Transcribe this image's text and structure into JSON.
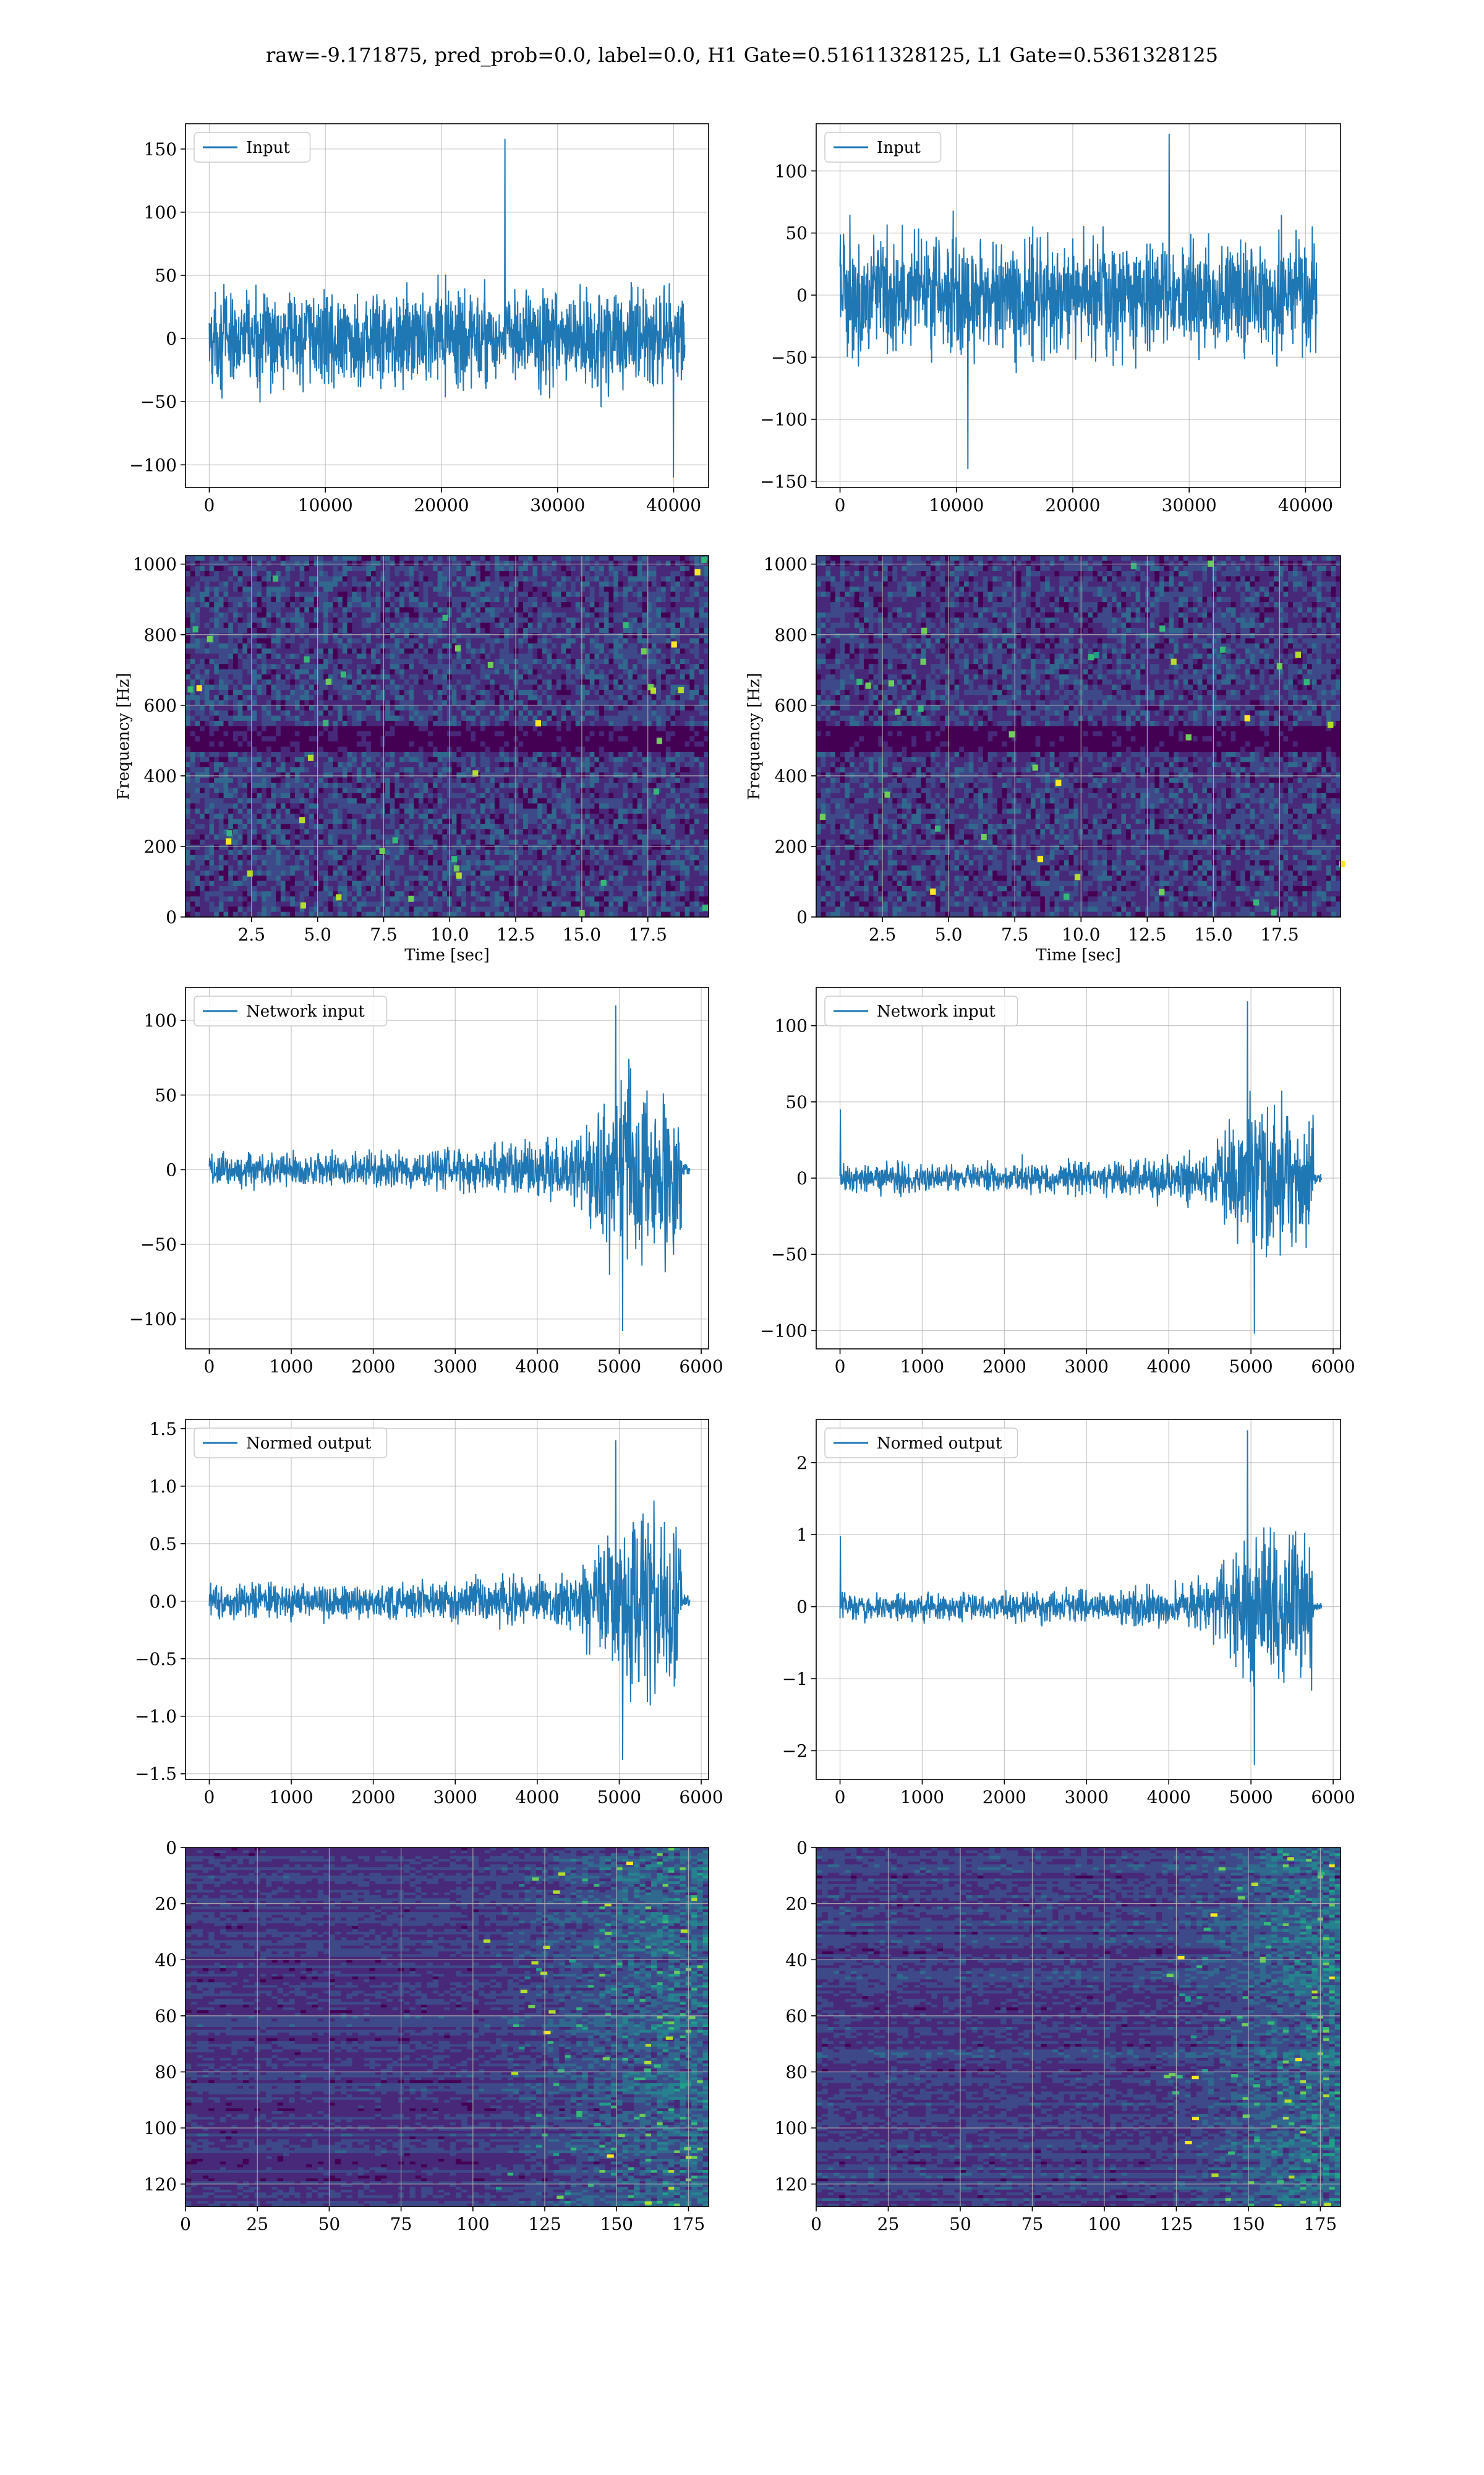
{
  "figure": {
    "title": "raw=-9.171875, pred_prob=0.0, label=0.0, H1 Gate=0.51611328125, L1 Gate=0.5361328125"
  },
  "colors": {
    "line": "#1f77b4",
    "grid": "#b0b0b0",
    "viridis": [
      "#440154",
      "#482878",
      "#3e4989",
      "#31688e",
      "#26828e",
      "#1f9e89",
      "#35b779",
      "#6ece58",
      "#b5de2b",
      "#fde725"
    ]
  },
  "chart_data": [
    {
      "id": "h1-input",
      "type": "line",
      "row": 0,
      "col": 0,
      "legend": "Input",
      "legend_position": "upper-left",
      "xlim": [
        -2048,
        43008
      ],
      "ylim": [
        -118,
        170
      ],
      "xticks": [
        0,
        10000,
        20000,
        30000,
        40000
      ],
      "yticks": [
        -100,
        -50,
        0,
        50,
        100,
        150
      ],
      "grid": true,
      "signal": {
        "length": 40960,
        "points": 1500,
        "base_amp": 26,
        "spikes": [
          158,
          -110
        ],
        "envelope": [
          [
            0,
            1.0
          ],
          [
            1,
            1.0
          ]
        ],
        "tail": false
      }
    },
    {
      "id": "l1-input",
      "type": "line",
      "row": 0,
      "col": 1,
      "legend": "Input",
      "legend_position": "upper-left",
      "xlim": [
        -2048,
        43008
      ],
      "ylim": [
        -155,
        138
      ],
      "xticks": [
        0,
        10000,
        20000,
        30000,
        40000
      ],
      "yticks": [
        -150,
        -100,
        -50,
        0,
        50,
        100
      ],
      "grid": true,
      "signal": {
        "length": 40960,
        "points": 1500,
        "base_amp": 32,
        "spikes": [
          130,
          -140
        ],
        "envelope": [
          [
            0,
            1.0
          ],
          [
            1,
            1.0
          ]
        ],
        "tail": false
      }
    },
    {
      "id": "h1-spectrogram",
      "type": "heatmap",
      "row": 1,
      "col": 0,
      "xlabel": "Time [sec]",
      "ylabel": "Frequency [Hz]",
      "xlim": [
        0,
        19.8
      ],
      "ylim": [
        0,
        1024
      ],
      "xticks": [
        2.5,
        5.0,
        7.5,
        10.0,
        12.5,
        15.0,
        17.5
      ],
      "xtick_labels": [
        "2.5",
        "5.0",
        "7.5",
        "10.0",
        "12.5",
        "15.0",
        "17.5"
      ],
      "yticks": [
        0,
        200,
        400,
        600,
        800,
        1000
      ],
      "grid": true,
      "colormap": "viridis",
      "texture": {
        "cols": 110,
        "rows": 70,
        "mean": 0.18,
        "spread": 0.16,
        "hot_spots": 40,
        "dark_bands": [
          0.48,
          0.5
        ]
      }
    },
    {
      "id": "l1-spectrogram",
      "type": "heatmap",
      "row": 1,
      "col": 1,
      "xlabel": "Time [sec]",
      "ylabel": "Frequency [Hz]",
      "xlim": [
        0,
        19.8
      ],
      "ylim": [
        0,
        1024
      ],
      "xticks": [
        2.5,
        5.0,
        7.5,
        10.0,
        12.5,
        15.0,
        17.5
      ],
      "xtick_labels": [
        "2.5",
        "5.0",
        "7.5",
        "10.0",
        "12.5",
        "15.0",
        "17.5"
      ],
      "yticks": [
        0,
        200,
        400,
        600,
        800,
        1000
      ],
      "grid": true,
      "colormap": "viridis",
      "texture": {
        "cols": 110,
        "rows": 70,
        "mean": 0.17,
        "spread": 0.15,
        "hot_spots": 35,
        "dark_bands": [
          0.48,
          0.5
        ]
      }
    },
    {
      "id": "h1-network-input",
      "type": "line",
      "row": 2,
      "col": 0,
      "legend": "Network input",
      "legend_position": "upper-left",
      "xlim": [
        -290,
        6090
      ],
      "ylim": [
        -120,
        122
      ],
      "xticks": [
        0,
        1000,
        2000,
        3000,
        4000,
        5000,
        6000
      ],
      "yticks": [
        -100,
        -50,
        0,
        50,
        100
      ],
      "grid": true,
      "signal": {
        "length": 5760,
        "points": 1300,
        "base_amp": 9,
        "spikes": [
          110,
          -108
        ],
        "envelope": [
          [
            0,
            0.9
          ],
          [
            0.3,
            0.9
          ],
          [
            0.6,
            1.2
          ],
          [
            0.78,
            1.6
          ],
          [
            0.82,
            3.5
          ],
          [
            0.9,
            5
          ],
          [
            0.95,
            4.5
          ],
          [
            1,
            4
          ]
        ],
        "tail": true,
        "tail_end": 5860
      }
    },
    {
      "id": "l1-network-input",
      "type": "line",
      "row": 2,
      "col": 1,
      "legend": "Network input",
      "legend_position": "upper-left",
      "xlim": [
        -290,
        6090
      ],
      "ylim": [
        -112,
        125
      ],
      "xticks": [
        0,
        1000,
        2000,
        3000,
        4000,
        5000,
        6000
      ],
      "yticks": [
        -100,
        -50,
        0,
        50,
        100
      ],
      "grid": true,
      "signal": {
        "length": 5760,
        "points": 1300,
        "base_amp": 7,
        "spikes": [
          116,
          -102,
          45
        ],
        "envelope": [
          [
            0,
            0.9
          ],
          [
            0.3,
            0.9
          ],
          [
            0.6,
            1.2
          ],
          [
            0.78,
            1.7
          ],
          [
            0.82,
            3.8
          ],
          [
            0.9,
            5.5
          ],
          [
            0.95,
            5
          ],
          [
            1,
            4.5
          ]
        ],
        "tail": true,
        "tail_end": 5860
      }
    },
    {
      "id": "h1-normed-output",
      "type": "line",
      "row": 3,
      "col": 0,
      "legend": "Normed output",
      "legend_position": "upper-left",
      "xlim": [
        -290,
        6090
      ],
      "ylim": [
        -1.55,
        1.58
      ],
      "xticks": [
        0,
        1000,
        2000,
        3000,
        4000,
        5000,
        6000
      ],
      "yticks": [
        -1.5,
        -1.0,
        -0.5,
        0.0,
        0.5,
        1.0,
        1.5
      ],
      "ytick_labels": [
        "−1.5",
        "−1.0",
        "−0.5",
        "0.0",
        "0.5",
        "1.0",
        "1.5"
      ],
      "grid": true,
      "signal": {
        "length": 5760,
        "points": 1300,
        "base_amp": 0.11,
        "spikes": [
          1.4,
          -1.38
        ],
        "envelope": [
          [
            0,
            0.9
          ],
          [
            0.3,
            0.9
          ],
          [
            0.6,
            1.2
          ],
          [
            0.78,
            1.6
          ],
          [
            0.82,
            3.5
          ],
          [
            0.9,
            5
          ],
          [
            0.95,
            4.5
          ],
          [
            1,
            4
          ]
        ],
        "tail": true,
        "tail_end": 5860
      }
    },
    {
      "id": "l1-normed-output",
      "type": "line",
      "row": 3,
      "col": 1,
      "legend": "Normed output",
      "legend_position": "upper-left",
      "xlim": [
        -290,
        6090
      ],
      "ylim": [
        -2.4,
        2.6
      ],
      "xticks": [
        0,
        1000,
        2000,
        3000,
        4000,
        5000,
        6000
      ],
      "yticks": [
        -2,
        -1,
        0,
        1,
        2
      ],
      "ytick_labels": [
        "−2",
        "−1",
        "0",
        "1",
        "2"
      ],
      "grid": true,
      "signal": {
        "length": 5760,
        "points": 1300,
        "base_amp": 0.14,
        "spikes": [
          2.45,
          -2.2,
          0.98
        ],
        "envelope": [
          [
            0,
            0.9
          ],
          [
            0.3,
            0.9
          ],
          [
            0.6,
            1.2
          ],
          [
            0.78,
            1.7
          ],
          [
            0.82,
            3.8
          ],
          [
            0.9,
            5.5
          ],
          [
            0.95,
            5
          ],
          [
            1,
            4.5
          ]
        ],
        "tail": true,
        "tail_end": 5860
      }
    },
    {
      "id": "h1-feature-map",
      "type": "heatmap",
      "row": 4,
      "col": 0,
      "xlim": [
        0,
        182
      ],
      "ylim": [
        128,
        0
      ],
      "xticks": [
        0,
        25,
        50,
        75,
        100,
        125,
        150,
        175
      ],
      "yticks": [
        0,
        20,
        40,
        60,
        80,
        100,
        120
      ],
      "grid": true,
      "colormap": "viridis",
      "texture": {
        "cols": 91,
        "rows": 128,
        "mean": 0.08,
        "spread": 0.06,
        "hot_spots": 30,
        "activation_start": 0.55,
        "row_stripes": true
      }
    },
    {
      "id": "l1-feature-map",
      "type": "heatmap",
      "row": 4,
      "col": 1,
      "xlim": [
        0,
        182
      ],
      "ylim": [
        128,
        0
      ],
      "xticks": [
        0,
        25,
        50,
        75,
        100,
        125,
        150,
        175
      ],
      "yticks": [
        0,
        20,
        40,
        60,
        80,
        100,
        120
      ],
      "grid": true,
      "colormap": "viridis",
      "texture": {
        "cols": 91,
        "rows": 128,
        "mean": 0.1,
        "spread": 0.07,
        "hot_spots": 30,
        "activation_start": 0.65,
        "row_stripes": true
      }
    }
  ]
}
